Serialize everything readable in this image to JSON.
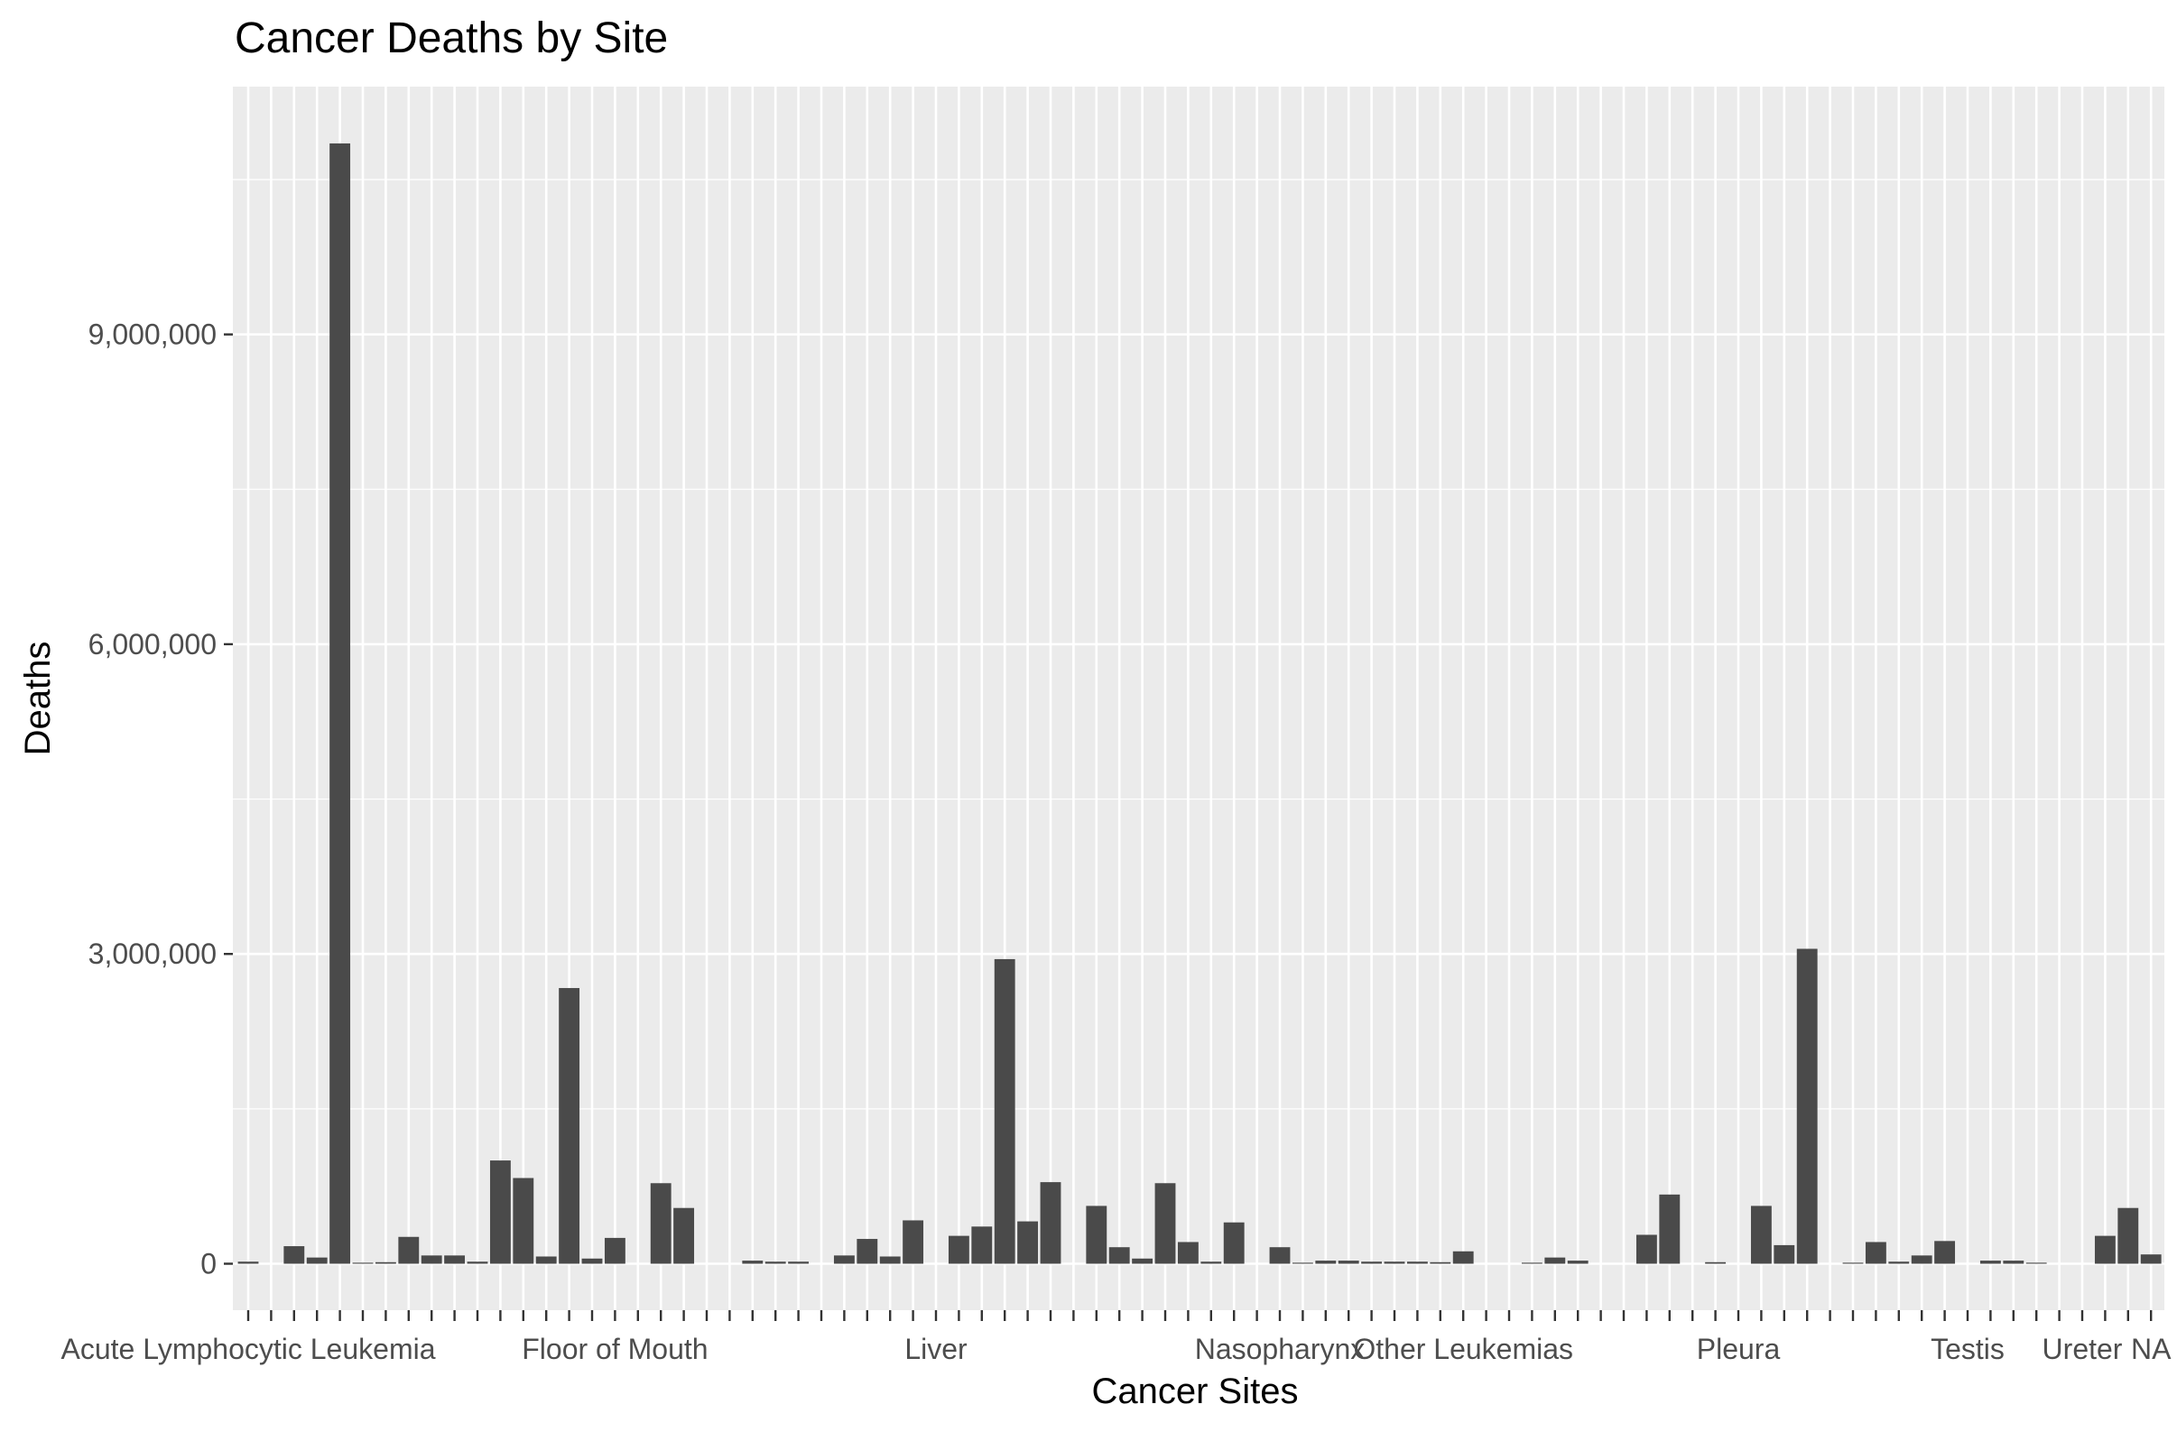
{
  "chart_data": {
    "type": "bar",
    "title": "Cancer Deaths by Site",
    "xlabel": "Cancer Sites",
    "ylabel": "Deaths",
    "ylim": [
      -450000,
      11400000
    ],
    "y_ticks": [
      0,
      3000000,
      6000000,
      9000000
    ],
    "y_tick_labels": [
      "0",
      "3,000,000",
      "6,000,000",
      "9,000,000"
    ],
    "x_tick_labels_shown": [
      {
        "index": 0,
        "label": "Acute Lymphocytic Leukemia"
      },
      {
        "index": 16,
        "label": "Floor of Mouth"
      },
      {
        "index": 30,
        "label": "Liver"
      },
      {
        "index": 45,
        "label": "Nasopharynx"
      },
      {
        "index": 53,
        "label": "Other Leukemias"
      },
      {
        "index": 65,
        "label": "Pleura"
      },
      {
        "index": 75,
        "label": "Testis"
      },
      {
        "index": 80,
        "label": "Ureter"
      },
      {
        "index": 83,
        "label": "NA"
      }
    ],
    "categories_count": 84,
    "values": [
      20000,
      0,
      170000,
      60000,
      10850000,
      10000,
      15000,
      260000,
      80000,
      80000,
      20000,
      1000000,
      830000,
      70000,
      2670000,
      50000,
      250000,
      0,
      780000,
      540000,
      0,
      0,
      30000,
      20000,
      20000,
      0,
      80000,
      240000,
      70000,
      420000,
      0,
      270000,
      360000,
      2950000,
      410000,
      790000,
      0,
      560000,
      160000,
      50000,
      780000,
      210000,
      20000,
      400000,
      0,
      160000,
      10000,
      30000,
      30000,
      20000,
      20000,
      20000,
      15000,
      120000,
      0,
      0,
      10000,
      60000,
      30000,
      0,
      0,
      280000,
      670000,
      0,
      15000,
      0,
      560000,
      180000,
      3050000,
      0,
      10000,
      210000,
      20000,
      80000,
      220000,
      0,
      30000,
      30000,
      10000,
      0,
      0,
      270000,
      540000,
      90000
    ],
    "bar_color": "#4a4a4a",
    "panel_background": "#ebebeb",
    "grid": true,
    "legend": "none"
  }
}
